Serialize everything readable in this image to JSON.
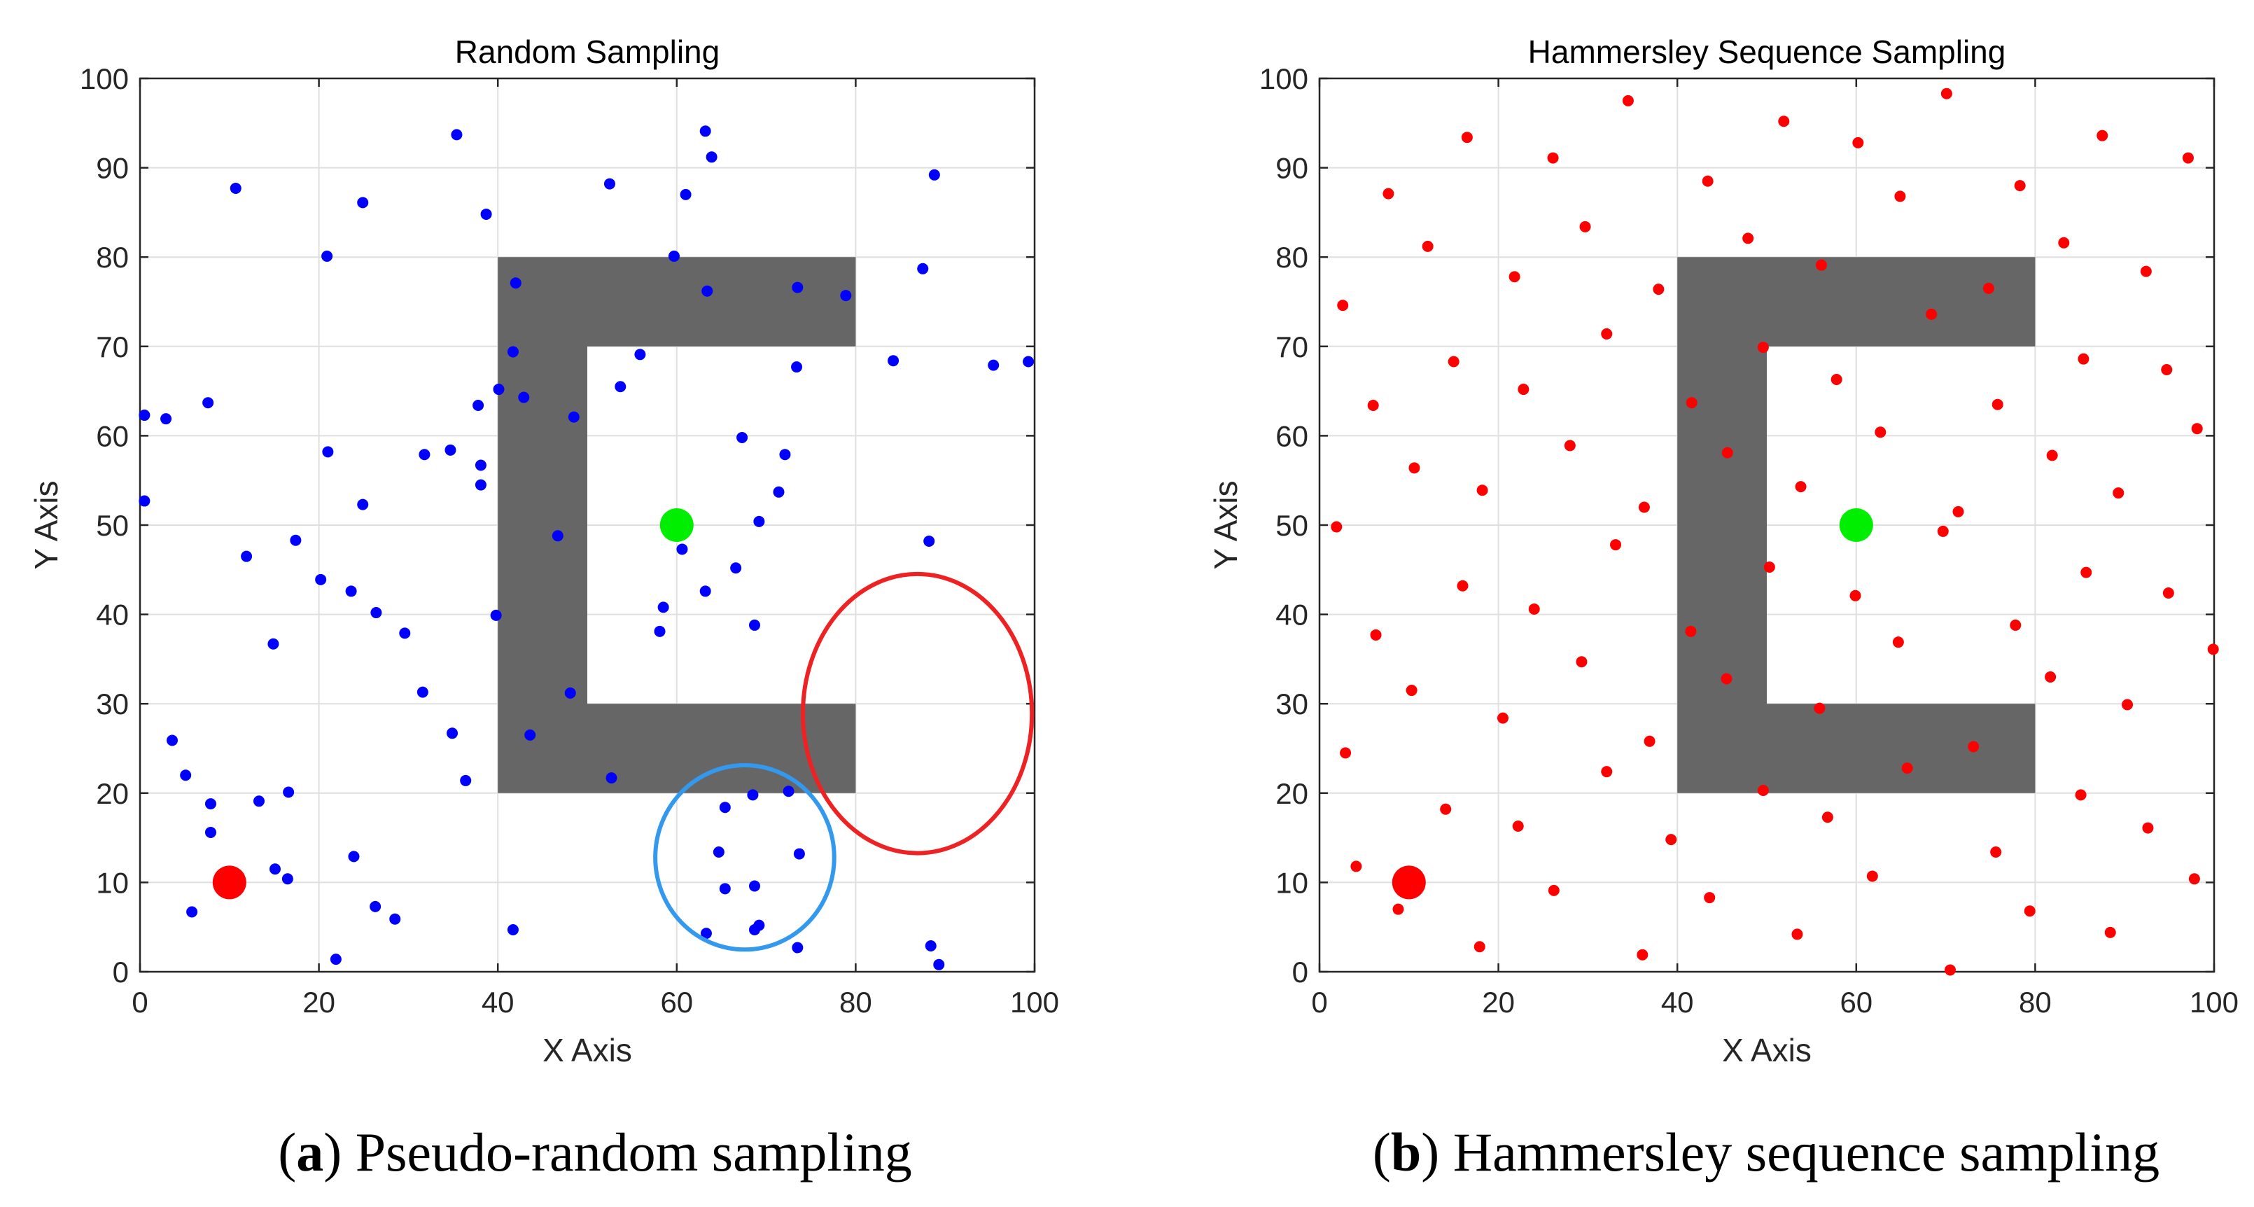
{
  "chart_data": [
    {
      "type": "scatter",
      "title": "Random Sampling",
      "caption_letter": "a",
      "caption_text": "Pseudo-random sampling",
      "xlabel": "X Axis",
      "ylabel": "Y Axis",
      "xlim": [
        0,
        100
      ],
      "ylim": [
        0,
        100
      ],
      "xticks": [
        0,
        20,
        40,
        60,
        80,
        100
      ],
      "yticks": [
        0,
        10,
        20,
        30,
        40,
        50,
        60,
        70,
        80,
        90,
        100
      ],
      "grid": true,
      "obstacle": [
        [
          40,
          20
        ],
        [
          80,
          20
        ],
        [
          80,
          30
        ],
        [
          50,
          30
        ],
        [
          50,
          70
        ],
        [
          80,
          70
        ],
        [
          80,
          80
        ],
        [
          40,
          80
        ]
      ],
      "obstacle_color": "#666666",
      "start": {
        "x": 10,
        "y": 10,
        "color": "#ff0000"
      },
      "goal": {
        "x": 60,
        "y": 50,
        "color": "#00ee00"
      },
      "point_color": "#0000ff",
      "points": [
        [
          0.5,
          62.3
        ],
        [
          2.9,
          61.9
        ],
        [
          0.5,
          52.7
        ],
        [
          7.6,
          63.7
        ],
        [
          10.7,
          87.7
        ],
        [
          11.9,
          46.5
        ],
        [
          14.9,
          36.7
        ],
        [
          17.4,
          48.3
        ],
        [
          20.2,
          43.9
        ],
        [
          21.0,
          58.2
        ],
        [
          20.9,
          80.1
        ],
        [
          24.9,
          86.1
        ],
        [
          24.9,
          52.3
        ],
        [
          23.6,
          42.6
        ],
        [
          26.4,
          40.2
        ],
        [
          29.6,
          37.9
        ],
        [
          31.6,
          31.3
        ],
        [
          31.8,
          57.9
        ],
        [
          34.7,
          58.4
        ],
        [
          35.4,
          93.7
        ],
        [
          37.8,
          63.4
        ],
        [
          38.7,
          84.8
        ],
        [
          38.1,
          56.7
        ],
        [
          38.1,
          54.5
        ],
        [
          40.1,
          65.2
        ],
        [
          39.8,
          39.9
        ],
        [
          41.7,
          69.4
        ],
        [
          42.0,
          77.1
        ],
        [
          42.9,
          64.3
        ],
        [
          46.7,
          48.8
        ],
        [
          48.1,
          31.2
        ],
        [
          48.5,
          62.1
        ],
        [
          43.6,
          26.5
        ],
        [
          34.9,
          26.7
        ],
        [
          36.4,
          21.4
        ],
        [
          52.5,
          88.2
        ],
        [
          53.7,
          65.5
        ],
        [
          55.9,
          69.1
        ],
        [
          59.7,
          80.1
        ],
        [
          61.0,
          87.0
        ],
        [
          63.2,
          94.1
        ],
        [
          63.9,
          91.2
        ],
        [
          63.4,
          76.2
        ],
        [
          73.5,
          76.6
        ],
        [
          73.4,
          67.7
        ],
        [
          78.9,
          75.7
        ],
        [
          84.2,
          68.4
        ],
        [
          87.5,
          78.7
        ],
        [
          88.8,
          89.2
        ],
        [
          95.4,
          67.9
        ],
        [
          99.3,
          68.3
        ],
        [
          67.3,
          59.8
        ],
        [
          72.1,
          57.9
        ],
        [
          71.4,
          53.7
        ],
        [
          69.2,
          50.4
        ],
        [
          60.6,
          47.3
        ],
        [
          66.6,
          45.2
        ],
        [
          58.5,
          40.8
        ],
        [
          58.1,
          38.1
        ],
        [
          63.2,
          42.6
        ],
        [
          68.7,
          38.8
        ],
        [
          88.2,
          48.2
        ],
        [
          52.7,
          21.7
        ],
        [
          3.6,
          25.9
        ],
        [
          5.1,
          22.0
        ],
        [
          7.9,
          18.8
        ],
        [
          7.9,
          15.6
        ],
        [
          13.3,
          19.1
        ],
        [
          16.6,
          20.1
        ],
        [
          15.1,
          11.5
        ],
        [
          16.5,
          10.4
        ],
        [
          5.8,
          6.7
        ],
        [
          23.9,
          12.9
        ],
        [
          26.3,
          7.3
        ],
        [
          28.5,
          5.9
        ],
        [
          21.9,
          1.4
        ],
        [
          41.7,
          4.7
        ],
        [
          65.4,
          18.4
        ],
        [
          68.5,
          19.8
        ],
        [
          72.5,
          20.2
        ],
        [
          64.7,
          13.4
        ],
        [
          73.7,
          13.2
        ],
        [
          65.4,
          9.3
        ],
        [
          68.7,
          9.6
        ],
        [
          63.3,
          4.3
        ],
        [
          68.7,
          4.7
        ],
        [
          69.2,
          5.2
        ],
        [
          73.5,
          2.7
        ],
        [
          88.4,
          2.9
        ],
        [
          89.3,
          0.8
        ]
      ],
      "circles": [
        {
          "cx": 67.6,
          "cy": 12.8,
          "rx": 10.0,
          "ry": 10.3,
          "color": "#3399ee"
        },
        {
          "cx": 86.9,
          "cy": 28.9,
          "rx": 12.8,
          "ry": 15.6,
          "color": "#ee2222"
        }
      ]
    },
    {
      "type": "scatter",
      "title": "Hammersley Sequence Sampling",
      "caption_letter": "b",
      "caption_text": "Hammersley sequence sampling",
      "xlabel": "X Axis",
      "ylabel": "Y Axis",
      "xlim": [
        0,
        100
      ],
      "ylim": [
        0,
        100
      ],
      "xticks": [
        0,
        20,
        40,
        60,
        80,
        100
      ],
      "yticks": [
        0,
        10,
        20,
        30,
        40,
        50,
        60,
        70,
        80,
        90,
        100
      ],
      "grid": true,
      "obstacle": [
        [
          40,
          20
        ],
        [
          80,
          20
        ],
        [
          80,
          30
        ],
        [
          50,
          30
        ],
        [
          50,
          70
        ],
        [
          80,
          70
        ],
        [
          80,
          80
        ],
        [
          40,
          80
        ]
      ],
      "obstacle_color": "#666666",
      "start": {
        "x": 10,
        "y": 10,
        "color": "#ff0000"
      },
      "goal": {
        "x": 60,
        "y": 50,
        "color": "#00ee00"
      },
      "point_color": "#ff0000",
      "points": [
        [
          2.6,
          74.6
        ],
        [
          1.9,
          49.8
        ],
        [
          2.9,
          24.5
        ],
        [
          4.1,
          11.8
        ],
        [
          6.0,
          63.4
        ],
        [
          6.3,
          37.7
        ],
        [
          7.7,
          87.1
        ],
        [
          8.8,
          7.0
        ],
        [
          10.6,
          56.4
        ],
        [
          10.3,
          31.5
        ],
        [
          12.1,
          81.2
        ],
        [
          14.1,
          18.2
        ],
        [
          15.0,
          68.3
        ],
        [
          16.0,
          43.2
        ],
        [
          16.5,
          93.4
        ],
        [
          17.9,
          2.8
        ],
        [
          18.2,
          53.9
        ],
        [
          20.5,
          28.4
        ],
        [
          21.8,
          77.8
        ],
        [
          22.2,
          16.3
        ],
        [
          22.8,
          65.2
        ],
        [
          24.0,
          40.6
        ],
        [
          26.1,
          91.1
        ],
        [
          26.2,
          9.1
        ],
        [
          28.0,
          58.9
        ],
        [
          29.3,
          34.7
        ],
        [
          29.7,
          83.4
        ],
        [
          32.1,
          22.4
        ],
        [
          32.1,
          71.4
        ],
        [
          33.1,
          47.8
        ],
        [
          34.5,
          97.5
        ],
        [
          36.1,
          1.9
        ],
        [
          36.3,
          52.0
        ],
        [
          36.9,
          25.8
        ],
        [
          37.9,
          76.4
        ],
        [
          39.3,
          14.8
        ],
        [
          41.6,
          63.7
        ],
        [
          41.5,
          38.1
        ],
        [
          43.4,
          88.5
        ],
        [
          43.6,
          8.3
        ],
        [
          45.6,
          58.1
        ],
        [
          45.5,
          32.8
        ],
        [
          47.9,
          82.1
        ],
        [
          49.6,
          20.3
        ],
        [
          49.6,
          69.9
        ],
        [
          50.3,
          45.3
        ],
        [
          51.9,
          95.2
        ],
        [
          53.4,
          4.2
        ],
        [
          53.8,
          54.3
        ],
        [
          55.9,
          29.5
        ],
        [
          56.1,
          79.1
        ],
        [
          56.8,
          17.3
        ],
        [
          57.8,
          66.3
        ],
        [
          59.9,
          42.1
        ],
        [
          60.2,
          92.8
        ],
        [
          61.8,
          10.7
        ],
        [
          62.7,
          60.4
        ],
        [
          64.7,
          36.9
        ],
        [
          64.9,
          86.8
        ],
        [
          65.7,
          22.8
        ],
        [
          68.4,
          73.6
        ],
        [
          69.7,
          49.3
        ],
        [
          70.1,
          98.3
        ],
        [
          70.5,
          0.2
        ],
        [
          71.4,
          51.5
        ],
        [
          73.1,
          25.2
        ],
        [
          74.8,
          76.5
        ],
        [
          75.6,
          13.4
        ],
        [
          75.8,
          63.5
        ],
        [
          77.8,
          38.8
        ],
        [
          78.3,
          88.0
        ],
        [
          79.4,
          6.8
        ],
        [
          81.9,
          57.8
        ],
        [
          81.7,
          33.0
        ],
        [
          83.2,
          81.6
        ],
        [
          85.1,
          19.8
        ],
        [
          85.4,
          68.6
        ],
        [
          85.7,
          44.7
        ],
        [
          87.5,
          93.6
        ],
        [
          88.4,
          4.4
        ],
        [
          89.3,
          53.6
        ],
        [
          90.3,
          29.9
        ],
        [
          92.4,
          78.4
        ],
        [
          92.6,
          16.1
        ],
        [
          94.7,
          67.4
        ],
        [
          94.9,
          42.4
        ],
        [
          97.1,
          91.1
        ],
        [
          97.8,
          10.4
        ],
        [
          98.1,
          60.8
        ],
        [
          99.9,
          36.1
        ]
      ],
      "circles": []
    }
  ]
}
